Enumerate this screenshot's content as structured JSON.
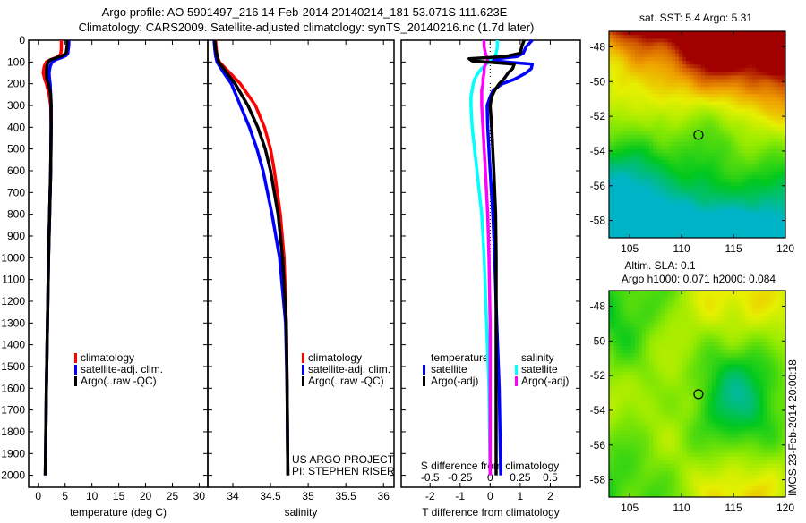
{
  "header": {
    "line1": "Argo profile: AO 5901497_216 14-Feb-2014 20140214_181 53.071S 111.623E",
    "line2": "Climatology: CARS2009. Satellite-adjusted climatology: synTS_20140216.nc (1.7d later)"
  },
  "colors": {
    "climatology": "#ff0000",
    "satellite": "#0000ff",
    "argo": "#000000",
    "s_satellite": "#00ffff",
    "s_argo": "#ff00ff"
  },
  "chart_data": [
    {
      "type": "line",
      "name": "temperature-profile",
      "xlabel": "temperature (deg C)",
      "ylabel": "",
      "xlim": [
        -1.8,
        31.6
      ],
      "ylim": [
        2055,
        0
      ],
      "xticks": [
        "0",
        "5",
        "10",
        "15",
        "20",
        "25",
        "30"
      ],
      "xtick_values": [
        0,
        5,
        10,
        15,
        20,
        25,
        30
      ],
      "yticks": [
        "0",
        "100",
        "200",
        "300",
        "400",
        "500",
        "600",
        "700",
        "800",
        "900",
        "1000",
        "1100",
        "1200",
        "1300",
        "1400",
        "1500",
        "1600",
        "1700",
        "1800",
        "1900",
        "2000"
      ],
      "legend": [
        "climatology",
        "satellite-adj. clim.",
        "Argo(..raw -QC)"
      ],
      "depth": [
        0,
        20,
        40,
        60,
        70,
        80,
        90,
        100,
        120,
        150,
        180,
        200,
        250,
        300,
        400,
        600,
        800,
        1000,
        1300,
        1600,
        2000
      ],
      "series": [
        {
          "name": "climatology",
          "values": [
            4.3,
            4.3,
            4.3,
            4.2,
            4.0,
            3.3,
            2.2,
            1.5,
            1.1,
            0.9,
            1.2,
            1.5,
            2.0,
            2.3,
            2.4,
            2.3,
            2.1,
            1.9,
            1.7,
            1.5,
            1.3
          ]
        },
        {
          "name": "satellite-adj. clim.",
          "values": [
            5.7,
            5.7,
            5.6,
            5.5,
            5.2,
            4.3,
            3.2,
            2.6,
            2.2,
            2.0,
            2.1,
            2.2,
            2.3,
            2.4,
            2.4,
            2.3,
            2.1,
            1.9,
            1.7,
            1.5,
            1.3
          ]
        },
        {
          "name": "Argo(..raw -QC)",
          "values": [
            5.4,
            5.4,
            5.3,
            5.2,
            4.6,
            3.5,
            2.3,
            1.8,
            1.6,
            1.5,
            1.6,
            1.9,
            2.3,
            2.4,
            2.4,
            2.3,
            2.1,
            1.9,
            1.7,
            1.5,
            1.3
          ]
        }
      ]
    },
    {
      "type": "line",
      "name": "salinity-profile",
      "xlabel": "salinity",
      "xlim": [
        33.667,
        36.14
      ],
      "ylim": [
        2055,
        0
      ],
      "xticks": [
        "34",
        "34.5",
        "35",
        "35.5",
        "36"
      ],
      "xtick_values": [
        34,
        34.5,
        35,
        35.5,
        36
      ],
      "legend": [
        "climatology",
        "satellite-adj. clim.",
        "Argo(..raw -QC)"
      ],
      "annotation": [
        "US ARGO PROJECT",
        "PI: STEPHEN RISER"
      ],
      "depth": [
        0,
        40,
        70,
        100,
        150,
        200,
        300,
        400,
        500,
        600,
        800,
        1000,
        1300,
        1600,
        2000
      ],
      "series": [
        {
          "name": "climatology",
          "values": [
            33.77,
            33.78,
            33.79,
            33.82,
            33.96,
            34.1,
            34.3,
            34.42,
            34.5,
            34.55,
            34.63,
            34.68,
            34.71,
            34.72,
            34.73
          ]
        },
        {
          "name": "satellite-adj. clim.",
          "values": [
            33.75,
            33.76,
            33.77,
            33.79,
            33.88,
            33.98,
            34.1,
            34.22,
            34.32,
            34.4,
            34.52,
            34.62,
            34.7,
            34.72,
            34.73
          ]
        },
        {
          "name": "Argo(..raw -QC)",
          "values": [
            33.76,
            33.77,
            33.79,
            33.81,
            33.92,
            34.03,
            34.2,
            34.33,
            34.43,
            34.5,
            34.6,
            34.66,
            34.71,
            34.72,
            34.73
          ]
        }
      ]
    },
    {
      "type": "line",
      "name": "difference-from-climatology",
      "xlabel": "T difference from climatology",
      "x2label": "S difference from climatology",
      "xlim": [
        -2.96,
        3.0
      ],
      "ylim": [
        2055,
        0
      ],
      "xticks": [
        "-2",
        "-1",
        "0",
        "1",
        "2"
      ],
      "xtick_values": [
        -2,
        -1,
        0,
        1,
        2
      ],
      "x2ticks": [
        "-0.5",
        "-0.25",
        "0",
        "0.25",
        "0.5"
      ],
      "x2tick_values": [
        -0.5,
        -0.25,
        0,
        0.25,
        0.5
      ],
      "legend_t_title": "temperature",
      "legend_s_title": "salinity",
      "legend": [
        "satellite",
        "Argo(-adj)",
        "satellite",
        "Argo(-adj)"
      ],
      "depth": [
        0,
        30,
        60,
        75,
        85,
        95,
        110,
        130,
        150,
        180,
        200,
        230,
        260,
        300,
        400,
        600,
        800,
        1000,
        1300,
        1600,
        2000
      ],
      "t_series": [
        {
          "name": "satellite",
          "values": [
            1.4,
            1.2,
            1.1,
            0.9,
            0.2,
            0.1,
            1.4,
            1.37,
            1.2,
            0.8,
            0.4,
            0.1,
            0.0,
            -0.1,
            -0.08,
            0.0,
            0.09,
            0.15,
            0.22,
            0.3,
            0.35
          ]
        },
        {
          "name": "Argo(-adj)",
          "values": [
            1.13,
            1.05,
            1.0,
            0.5,
            -0.7,
            -0.6,
            0.8,
            0.75,
            0.6,
            0.45,
            0.3,
            0.15,
            0.05,
            0.0,
            0.05,
            0.12,
            0.18,
            0.2,
            0.2,
            0.2,
            0.2
          ]
        }
      ],
      "s_series": [
        {
          "name": "satellite",
          "values": [
            0.06,
            0.06,
            0.05,
            0.04,
            0.02,
            0.0,
            -0.03,
            -0.07,
            -0.1,
            -0.13,
            -0.14,
            -0.15,
            -0.16,
            -0.16,
            -0.15,
            -0.11,
            -0.07,
            -0.05,
            -0.03,
            -0.01,
            0.0
          ]
        },
        {
          "name": "Argo(-adj)",
          "values": [
            -0.05,
            -0.05,
            -0.04,
            -0.03,
            -0.02,
            -0.02,
            -0.04,
            -0.05,
            -0.05,
            -0.06,
            -0.06,
            -0.07,
            -0.07,
            -0.07,
            -0.06,
            -0.04,
            -0.02,
            -0.01,
            0.0,
            0.0,
            0.0
          ]
        }
      ]
    },
    {
      "type": "heatmap",
      "name": "sst-map",
      "title": "sat. SST: 5.4 Argo: 5.31",
      "xlim": [
        103,
        120
      ],
      "ylim": [
        -59,
        -47.1
      ],
      "xticks": [
        "105",
        "110",
        "115",
        "120"
      ],
      "xtick_values": [
        105,
        110,
        115,
        120
      ],
      "yticks": [
        "-48",
        "-50",
        "-52",
        "-54",
        "-56",
        "-58"
      ],
      "ytick_values": [
        -48,
        -50,
        -52,
        -54,
        -56,
        -58
      ],
      "marker": {
        "lon": 111.623,
        "lat": -53.071
      }
    },
    {
      "type": "heatmap",
      "name": "sla-map",
      "title1": "Altim. SLA: 0.1",
      "title2": "Argo h1000: 0.071 h2000: 0.084",
      "xlim": [
        103,
        120
      ],
      "ylim": [
        -59,
        -47.1
      ],
      "xticks": [
        "105",
        "110",
        "115",
        "120"
      ],
      "xtick_values": [
        105,
        110,
        115,
        120
      ],
      "yticks": [
        "-48",
        "-50",
        "-52",
        "-54",
        "-56",
        "-58"
      ],
      "ytick_values": [
        -48,
        -50,
        -52,
        -54,
        -56,
        -58
      ],
      "marker": {
        "lon": 111.623,
        "lat": -53.071
      },
      "side_label": "IMOS 23-Feb-2014 20:00:18"
    }
  ]
}
